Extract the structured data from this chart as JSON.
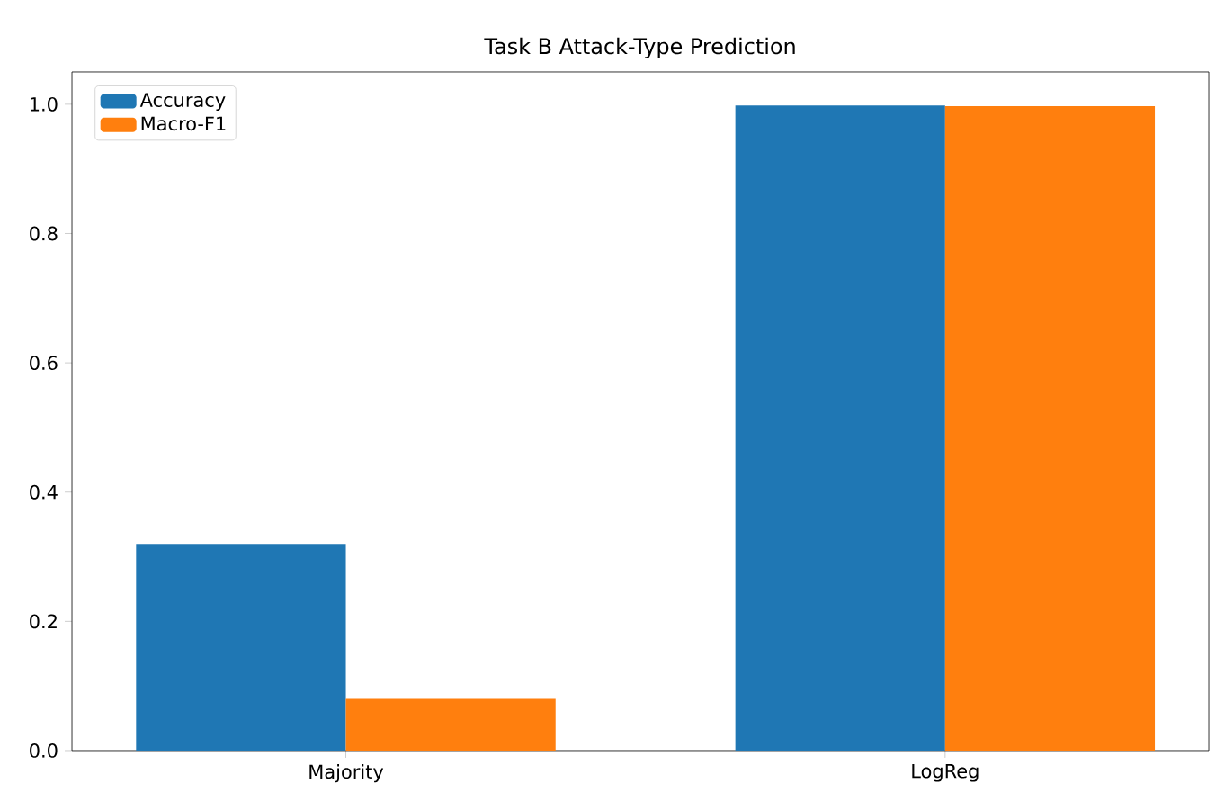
{
  "chart_data": {
    "type": "bar",
    "title": "Task B Attack-Type Prediction",
    "categories": [
      "Majority",
      "LogReg"
    ],
    "series": [
      {
        "name": "Accuracy",
        "color": "#1f77b4",
        "values": [
          0.32,
          0.998
        ]
      },
      {
        "name": "Macro-F1",
        "color": "#ff7f0e",
        "values": [
          0.08,
          0.997
        ]
      }
    ],
    "ylim": [
      0,
      1.05
    ],
    "yticks": [
      {
        "value": 0,
        "label": "0.0"
      },
      {
        "value": 0.2,
        "label": "0.2"
      },
      {
        "value": 0.4,
        "label": "0.4"
      },
      {
        "value": 0.6,
        "label": "0.6"
      },
      {
        "value": 0.8,
        "label": "0.8"
      },
      {
        "value": 1.0,
        "label": "1.0"
      }
    ],
    "grid": false,
    "legend": "top left"
  }
}
